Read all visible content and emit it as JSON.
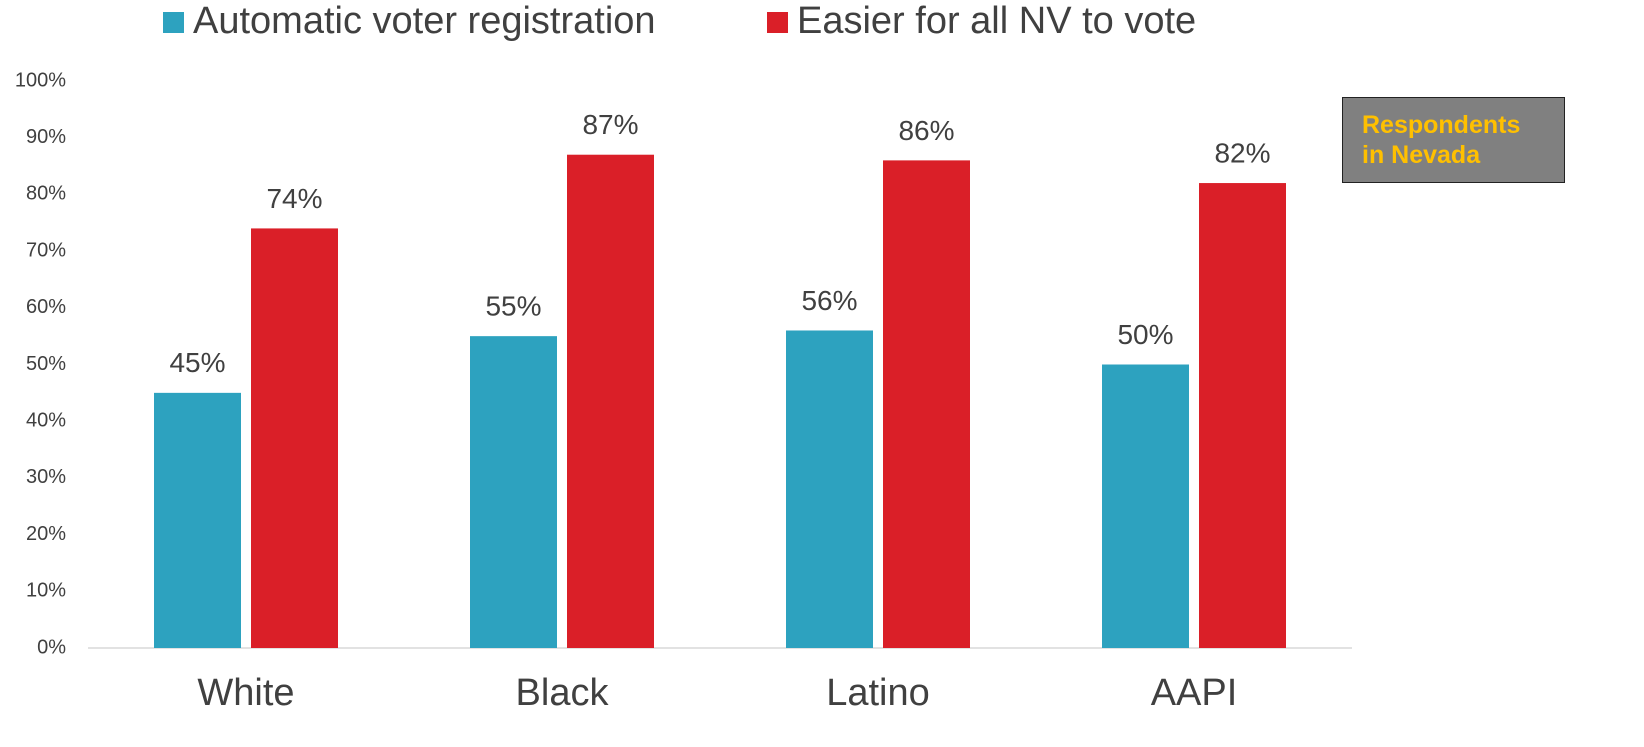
{
  "chart_data": {
    "type": "bar",
    "categories": [
      "White",
      "Black",
      "Latino",
      "AAPI"
    ],
    "series": [
      {
        "name": "Automatic voter registration",
        "color": "#2DA2BF",
        "values": [
          45,
          55,
          56,
          50
        ],
        "value_labels": [
          "45%",
          "55%",
          "56%",
          "50%"
        ]
      },
      {
        "name": "Easier for all NV to vote",
        "color": "#DA1F28",
        "values": [
          74,
          87,
          86,
          82
        ],
        "value_labels": [
          "74%",
          "87%",
          "86%",
          "82%"
        ]
      }
    ],
    "ylim": [
      0,
      100
    ],
    "yticks": [
      {
        "value": 0,
        "label": "0%"
      },
      {
        "value": 10,
        "label": "10%"
      },
      {
        "value": 20,
        "label": "20%"
      },
      {
        "value": 30,
        "label": "30%"
      },
      {
        "value": 40,
        "label": "40%"
      },
      {
        "value": 50,
        "label": "50%"
      },
      {
        "value": 60,
        "label": "60%"
      },
      {
        "value": 70,
        "label": "70%"
      },
      {
        "value": 80,
        "label": "80%"
      },
      {
        "value": 90,
        "label": "90%"
      },
      {
        "value": 100,
        "label": "100%"
      }
    ],
    "grid": false,
    "legend": "top",
    "annotation": "Respondents in Nevada"
  }
}
